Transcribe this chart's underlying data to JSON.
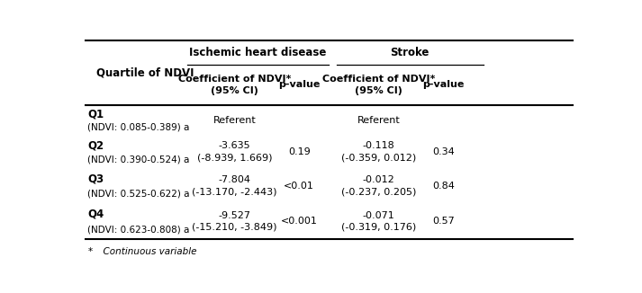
{
  "group_headers": [
    "Ischemic heart disease",
    "Stroke"
  ],
  "col0_header": "Quartile of NDVI",
  "col_headers": [
    "Coefficient of NDVI*\n(95% CI)",
    "p-value",
    "Coefficient of NDVI*\n(95% CI)",
    "p-value"
  ],
  "rows": [
    [
      "Q1",
      "(NDVI: 0.085-0.389) a",
      "Referent",
      "",
      "Referent",
      ""
    ],
    [
      "Q2",
      "(NDVI: 0.390-0.524) a",
      "-3.635\n(-8.939, 1.669)",
      "0.19",
      "-0.118\n(-0.359, 0.012)",
      "0.34"
    ],
    [
      "Q3",
      "(NDVI: 0.525-0.622) a",
      "-7.804\n(-13.170, -2.443)",
      "<0.01",
      "-0.012\n(-0.237, 0.205)",
      "0.84"
    ],
    [
      "Q4",
      "(NDVI: 0.623-0.808) a",
      "-9.527\n(-15.210, -3.849)",
      "<0.001",
      "-0.071\n(-0.319, 0.176)",
      "0.57"
    ]
  ],
  "footnote_star": "*",
  "footnote_text": "  Continuous variable",
  "bg_color": "#ffffff",
  "text_color": "#000000",
  "line_color": "#000000",
  "figsize": [
    7.13,
    3.26
  ],
  "dpi": 100
}
